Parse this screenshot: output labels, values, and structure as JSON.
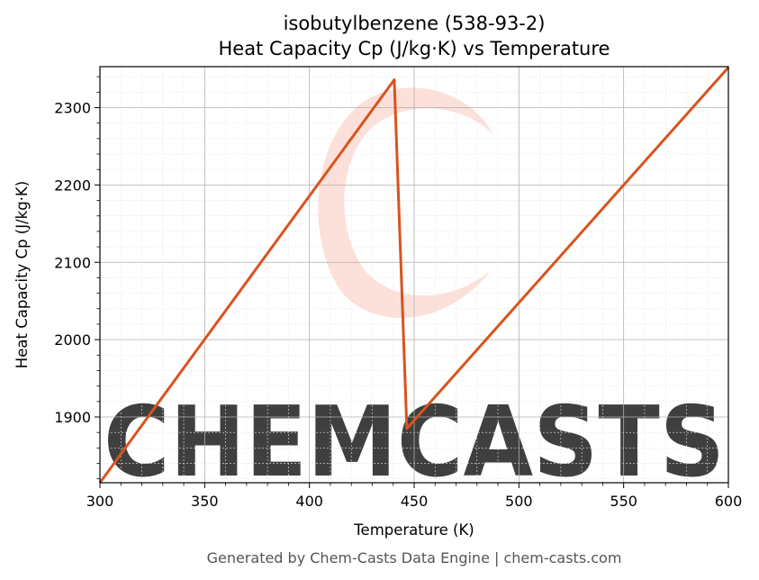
{
  "chart_data": {
    "type": "line",
    "title": "isobutylbenzene (538-93-2)",
    "subtitle": "Heat Capacity Cp (J/kg·K) vs Temperature",
    "xlabel": "Temperature (K)",
    "ylabel": "Heat Capacity Cp (J/kg·K)",
    "xlim": [
      300,
      600
    ],
    "ylim": [
      1815,
      2353
    ],
    "xticks": [
      300,
      350,
      400,
      450,
      500,
      550,
      600
    ],
    "yticks": [
      1900,
      2000,
      2100,
      2200,
      2300
    ],
    "grid": true,
    "series": [
      {
        "color": "#d9531e",
        "x": [
          300,
          440.5,
          446.5,
          600
        ],
        "y": [
          1815,
          2336,
          1885,
          2352
        ]
      }
    ]
  },
  "footer": "Generated by Chem-Casts Data Engine | chem-casts.com",
  "watermark": {
    "text": "CHEMCASTS",
    "color": "#fbd5cc"
  }
}
